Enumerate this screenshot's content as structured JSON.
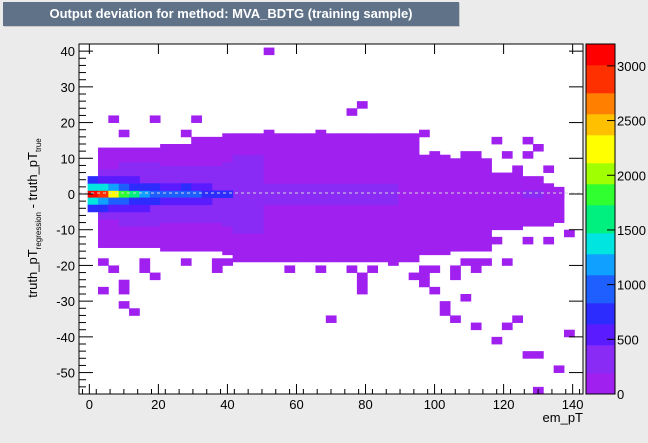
{
  "title": "Output deviation for method: MVA_BDTG (training sample)",
  "chart_data": {
    "type": "heatmap",
    "title": "Output deviation for method: MVA_BDTG (training sample)",
    "xlabel": "em_pT",
    "ylabel": {
      "pre": "truth_pT",
      "sub1": "regression",
      "mid": " - truth_pT",
      "sub2": "true"
    },
    "xlim": [
      -3,
      143
    ],
    "ylim": [
      -56,
      42
    ],
    "x_ticks": [
      0,
      20,
      40,
      60,
      80,
      100,
      120,
      140
    ],
    "y_ticks": [
      -50,
      -40,
      -30,
      -20,
      -10,
      0,
      10,
      20,
      30,
      40
    ],
    "z_range": [
      0,
      3200
    ],
    "z_ticks": [
      0,
      500,
      1000,
      1500,
      2000,
      2500,
      3000
    ],
    "palette": [
      "#a020f0",
      "#8a2bf5",
      "#5a1cff",
      "#2c2cff",
      "#1e5fff",
      "#10a0ff",
      "#00e5e0",
      "#00f080",
      "#30ff30",
      "#a0ff00",
      "#ffff00",
      "#ffc000",
      "#ff8000",
      "#ff3000",
      "#ff0000"
    ],
    "bins": [
      {
        "x": 1,
        "y": 0,
        "z": 3100
      },
      {
        "x": 4,
        "y": 0,
        "z": 2800
      },
      {
        "x": 7,
        "y": 0,
        "z": 2300
      },
      {
        "x": 10,
        "y": 0,
        "z": 1800
      },
      {
        "x": 13,
        "y": 0,
        "z": 1500
      },
      {
        "x": 16,
        "y": 0,
        "z": 1200
      },
      {
        "x": 19,
        "y": 0,
        "z": 1000
      },
      {
        "x": 22,
        "y": 0,
        "z": 950
      },
      {
        "x": 25,
        "y": 0,
        "z": 900
      },
      {
        "x": 28,
        "y": 0,
        "z": 950
      },
      {
        "x": 31,
        "y": 0,
        "z": 900
      },
      {
        "x": 34,
        "y": 0,
        "z": 850
      },
      {
        "x": 37,
        "y": 0,
        "z": 800
      },
      {
        "x": 40,
        "y": 0,
        "z": 750
      },
      {
        "x": 1,
        "y": 2,
        "z": 1400
      },
      {
        "x": 4,
        "y": 2,
        "z": 1300
      },
      {
        "x": 7,
        "y": 2,
        "z": 1100
      },
      {
        "x": 10,
        "y": 2,
        "z": 900
      },
      {
        "x": 13,
        "y": 2,
        "z": 800
      },
      {
        "x": 16,
        "y": 2,
        "z": 700
      },
      {
        "x": 19,
        "y": 2,
        "z": 650
      },
      {
        "x": 22,
        "y": 2,
        "z": 600
      },
      {
        "x": 25,
        "y": 2,
        "z": 600
      },
      {
        "x": 28,
        "y": 2,
        "z": 650
      },
      {
        "x": 31,
        "y": 2,
        "z": 600
      },
      {
        "x": 34,
        "y": 2,
        "z": 550
      },
      {
        "x": 1,
        "y": -2,
        "z": 1300
      },
      {
        "x": 4,
        "y": -2,
        "z": 1200
      },
      {
        "x": 7,
        "y": -2,
        "z": 1050
      },
      {
        "x": 10,
        "y": -2,
        "z": 900
      },
      {
        "x": 13,
        "y": -2,
        "z": 800
      },
      {
        "x": 16,
        "y": -2,
        "z": 700
      },
      {
        "x": 19,
        "y": -2,
        "z": 650
      },
      {
        "x": 22,
        "y": -2,
        "z": 600
      },
      {
        "x": 25,
        "y": -2,
        "z": 550
      },
      {
        "x": 28,
        "y": -2,
        "z": 550
      },
      {
        "x": 31,
        "y": -2,
        "z": 500
      },
      {
        "x": 34,
        "y": -2,
        "z": 500
      },
      {
        "x": 1,
        "y": -4,
        "z": 700
      },
      {
        "x": 4,
        "y": -4,
        "z": 650
      },
      {
        "x": 7,
        "y": -4,
        "z": 600
      },
      {
        "x": 10,
        "y": -4,
        "z": 550
      },
      {
        "x": 13,
        "y": -4,
        "z": 500
      },
      {
        "x": 16,
        "y": -4,
        "z": 480
      },
      {
        "x": 1,
        "y": 4,
        "z": 650
      },
      {
        "x": 4,
        "y": 4,
        "z": 600
      },
      {
        "x": 7,
        "y": 4,
        "z": 550
      },
      {
        "x": 10,
        "y": 4,
        "z": 500
      },
      {
        "x": 13,
        "y": 4,
        "z": 480
      },
      {
        "x": 130,
        "y": 0,
        "z": 220
      },
      {
        "x": 127,
        "y": 0,
        "z": 250
      },
      {
        "x": 133,
        "y": 0,
        "z": 180
      },
      {
        "x": 136,
        "y": 0,
        "z": 150
      }
    ],
    "sparse_bins": [
      {
        "x": 52,
        "y": 40
      },
      {
        "x": 79,
        "y": 25
      },
      {
        "x": 76,
        "y": 23
      },
      {
        "x": 7,
        "y": 21
      },
      {
        "x": 19,
        "y": 21
      },
      {
        "x": 31,
        "y": 21
      },
      {
        "x": 10,
        "y": 17
      },
      {
        "x": 28,
        "y": 17
      },
      {
        "x": 52,
        "y": 17
      },
      {
        "x": 67,
        "y": 17
      },
      {
        "x": 97,
        "y": 17
      },
      {
        "x": 118,
        "y": 15
      },
      {
        "x": 127,
        "y": 15
      },
      {
        "x": 130,
        "y": 13
      },
      {
        "x": 100,
        "y": 11
      },
      {
        "x": 109,
        "y": 11
      },
      {
        "x": 112,
        "y": 11
      },
      {
        "x": 121,
        "y": 11
      },
      {
        "x": 127,
        "y": 11
      },
      {
        "x": 133,
        "y": 7
      },
      {
        "x": 124,
        "y": 7
      },
      {
        "x": 130,
        "y": -7
      },
      {
        "x": 139,
        "y": -11
      },
      {
        "x": 133,
        "y": -13
      },
      {
        "x": 112,
        "y": -11
      },
      {
        "x": 118,
        "y": -13
      },
      {
        "x": 127,
        "y": -13
      },
      {
        "x": 103,
        "y": -13
      },
      {
        "x": 106,
        "y": -15
      },
      {
        "x": 4,
        "y": -19
      },
      {
        "x": 16,
        "y": -19
      },
      {
        "x": 28,
        "y": -19
      },
      {
        "x": 37,
        "y": -19
      },
      {
        "x": 40,
        "y": -19
      },
      {
        "x": 88,
        "y": -19
      },
      {
        "x": 109,
        "y": -19
      },
      {
        "x": 112,
        "y": -19
      },
      {
        "x": 115,
        "y": -19
      },
      {
        "x": 121,
        "y": -19
      },
      {
        "x": 7,
        "y": -21
      },
      {
        "x": 16,
        "y": -21
      },
      {
        "x": 37,
        "y": -21
      },
      {
        "x": 58,
        "y": -21
      },
      {
        "x": 67,
        "y": -21
      },
      {
        "x": 76,
        "y": -21
      },
      {
        "x": 82,
        "y": -21
      },
      {
        "x": 97,
        "y": -21
      },
      {
        "x": 100,
        "y": -21
      },
      {
        "x": 106,
        "y": -21
      },
      {
        "x": 112,
        "y": -21
      },
      {
        "x": 19,
        "y": -23
      },
      {
        "x": 79,
        "y": -23
      },
      {
        "x": 94,
        "y": -23
      },
      {
        "x": 97,
        "y": -23
      },
      {
        "x": 106,
        "y": -23
      },
      {
        "x": 10,
        "y": -25
      },
      {
        "x": 79,
        "y": -25
      },
      {
        "x": 97,
        "y": -25
      },
      {
        "x": 4,
        "y": -27
      },
      {
        "x": 10,
        "y": -27
      },
      {
        "x": 79,
        "y": -27
      },
      {
        "x": 100,
        "y": -27
      },
      {
        "x": 109,
        "y": -29
      },
      {
        "x": 10,
        "y": -31
      },
      {
        "x": 103,
        "y": -31
      },
      {
        "x": 13,
        "y": -33
      },
      {
        "x": 103,
        "y": -33
      },
      {
        "x": 70,
        "y": -35
      },
      {
        "x": 106,
        "y": -35
      },
      {
        "x": 124,
        "y": -35
      },
      {
        "x": 112,
        "y": -37
      },
      {
        "x": 121,
        "y": -37
      },
      {
        "x": 139,
        "y": -39
      },
      {
        "x": 118,
        "y": -41
      },
      {
        "x": 127,
        "y": -45
      },
      {
        "x": 130,
        "y": -45
      },
      {
        "x": 136,
        "y": -49
      },
      {
        "x": 130,
        "y": -55
      }
    ]
  }
}
